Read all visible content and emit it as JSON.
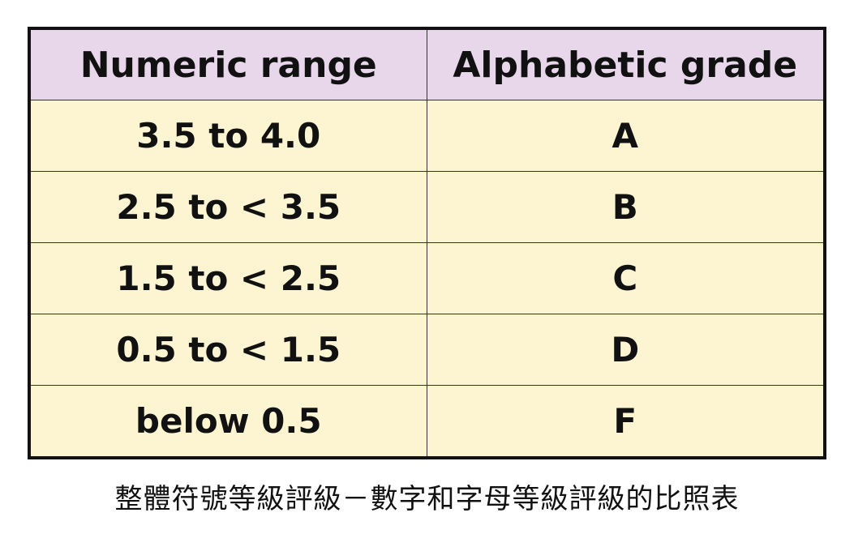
{
  "table": {
    "headers": {
      "range": "Numeric range",
      "grade": "Alphabetic grade"
    },
    "rows": [
      {
        "range": "3.5 to 4.0",
        "grade": "A"
      },
      {
        "range": "2.5 to < 3.5",
        "grade": "B"
      },
      {
        "range": "1.5 to < 2.5",
        "grade": "C"
      },
      {
        "range": "0.5 to < 1.5",
        "grade": "D"
      },
      {
        "range": "below 0.5",
        "grade": "F"
      }
    ],
    "colors": {
      "header_bg": "#e8d7ea",
      "row_bg": "#fdf4d2",
      "border": "#111111"
    }
  },
  "caption": "整體符號等級評級－數字和字母等級評級的比照表"
}
